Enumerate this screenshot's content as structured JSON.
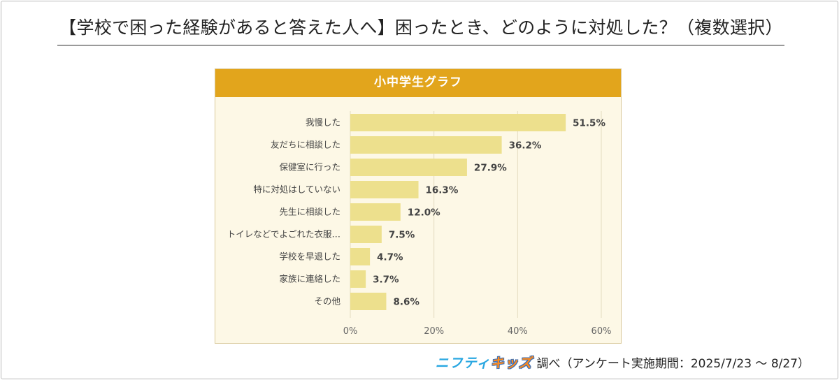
{
  "title": "【学校で困った経験があると答えた人へ】困ったとき、どのように対処した？（複数選択）",
  "panel_title": "小中学生グラフ",
  "brand": {
    "part1": "ニフティ",
    "part2": "キッズ"
  },
  "source": "調べ（アンケート実施期間：2025/7/23 ～ 8/27）",
  "colors": {
    "bar": "#ede08d",
    "header": "#e2a51c",
    "panel": "#fdf8e6",
    "grid": "#e4dcc0"
  },
  "chart_data": {
    "type": "bar",
    "orientation": "horizontal",
    "title": "小中学生グラフ",
    "categories": [
      "我慢した",
      "友だちに相談した",
      "保健室に行った",
      "特に対処はしていない",
      "先生に相談した",
      "トイレなどでよごれた衣服…",
      "学校を早退した",
      "家族に連絡した",
      "その他"
    ],
    "values": [
      51.5,
      36.2,
      27.9,
      16.3,
      12.0,
      7.5,
      4.7,
      3.7,
      8.6
    ],
    "value_labels": [
      "51.5%",
      "36.2%",
      "27.9%",
      "16.3%",
      "12.0%",
      "7.5%",
      "4.7%",
      "3.7%",
      "8.6%"
    ],
    "xlim": [
      0,
      60
    ],
    "xticks": [
      0,
      20,
      40,
      60
    ],
    "xtick_labels": [
      "0%",
      "20%",
      "40%",
      "60%"
    ],
    "grid": true,
    "xlabel": "",
    "ylabel": ""
  }
}
